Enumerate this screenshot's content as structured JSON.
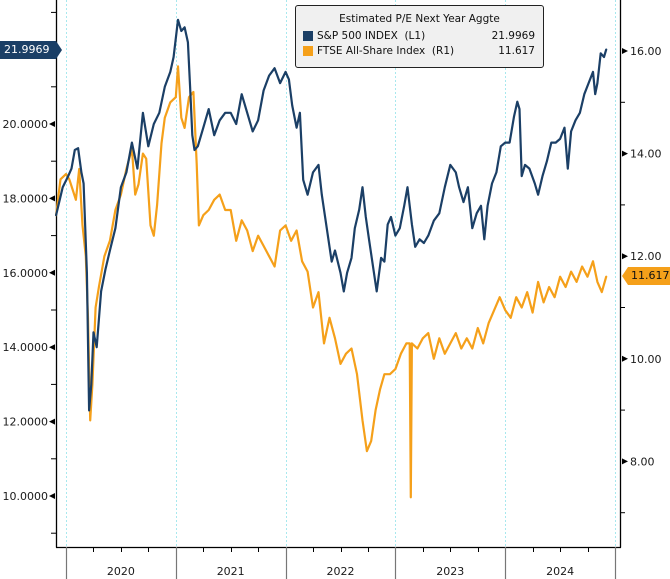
{
  "chart_data": {
    "type": "line",
    "title": "Estimated P/E Next Year Aggte",
    "xlabel": "",
    "x_ticks": [
      "2020",
      "2021",
      "2022",
      "2023",
      "2024"
    ],
    "x_range": [
      2019.91,
      2024.96
    ],
    "left_axis": {
      "ylim": [
        8.7,
        23.3
      ],
      "ticks": [
        "10.0000",
        "12.0000",
        "14.0000",
        "16.0000",
        "18.0000",
        "20.0000"
      ],
      "tick_values": [
        10,
        12,
        14,
        16,
        18,
        20
      ]
    },
    "right_axis": {
      "ylim": [
        6.9,
        16.95
      ],
      "ticks": [
        "8.00",
        "10.00",
        "12.00",
        "14.00",
        "16.00"
      ],
      "tick_values": [
        8,
        10,
        12,
        14,
        16
      ]
    },
    "grid": "vertical dotted at year boundaries",
    "legend_placement": "top-center",
    "series": [
      {
        "name": "S&P 500 INDEX",
        "axis_tag": "(L1)",
        "axis": "left",
        "color": "#1b3f66",
        "last_value": "21.9969",
        "x": [
          2019.91,
          2019.97,
          2020.02,
          2020.05,
          2020.08,
          2020.11,
          2020.14,
          2020.16,
          2020.19,
          2020.21,
          2020.23,
          2020.25,
          2020.28,
          2020.32,
          2020.36,
          2020.4,
          2020.45,
          2020.5,
          2020.55,
          2020.6,
          2020.65,
          2020.7,
          2020.75,
          2020.8,
          2020.85,
          2020.9,
          2020.95,
          2020.98,
          2021.02,
          2021.05,
          2021.08,
          2021.11,
          2021.13,
          2021.15,
          2021.17,
          2021.2,
          2021.25,
          2021.3,
          2021.35,
          2021.4,
          2021.45,
          2021.5,
          2021.55,
          2021.6,
          2021.65,
          2021.7,
          2021.75,
          2021.8,
          2021.85,
          2021.9,
          2021.95,
          2022.0,
          2022.03,
          2022.06,
          2022.1,
          2022.13,
          2022.16,
          2022.2,
          2022.25,
          2022.3,
          2022.33,
          2022.38,
          2022.42,
          2022.45,
          2022.5,
          2022.53,
          2022.56,
          2022.6,
          2022.63,
          2022.67,
          2022.7,
          2022.73,
          2022.76,
          2022.8,
          2022.83,
          2022.87,
          2022.9,
          2022.93,
          2022.96,
          2023.0,
          2023.04,
          2023.08,
          2023.11,
          2023.15,
          2023.18,
          2023.22,
          2023.26,
          2023.3,
          2023.35,
          2023.4,
          2023.45,
          2023.5,
          2023.55,
          2023.58,
          2023.62,
          2023.66,
          2023.7,
          2023.74,
          2023.78,
          2023.81,
          2023.84,
          2023.88,
          2023.92,
          2023.96,
          2024.0,
          2024.04,
          2024.08,
          2024.11,
          2024.13,
          2024.15,
          2024.18,
          2024.22,
          2024.27,
          2024.3,
          2024.34,
          2024.38,
          2024.42,
          2024.46,
          2024.5,
          2024.54,
          2024.57,
          2024.6,
          2024.64,
          2024.68,
          2024.72,
          2024.76,
          2024.8,
          2024.82,
          2024.84,
          2024.87,
          2024.9,
          2024.92
        ],
        "values": [
          17.55,
          18.3,
          18.6,
          18.8,
          19.3,
          19.35,
          18.7,
          18.4,
          16.0,
          12.3,
          13.0,
          14.4,
          14.0,
          15.5,
          16.1,
          16.6,
          17.2,
          18.3,
          18.7,
          19.5,
          18.8,
          20.3,
          19.4,
          20.0,
          20.3,
          21.0,
          21.4,
          21.8,
          22.8,
          22.5,
          22.6,
          22.2,
          21.0,
          19.7,
          19.3,
          19.4,
          19.9,
          20.4,
          19.7,
          20.1,
          20.3,
          20.3,
          20.0,
          20.8,
          20.3,
          19.8,
          20.1,
          20.9,
          21.3,
          21.5,
          21.1,
          21.4,
          21.2,
          20.5,
          19.9,
          20.3,
          18.5,
          18.1,
          18.7,
          18.9,
          18.1,
          17.1,
          16.3,
          16.6,
          16.0,
          15.5,
          16.0,
          16.4,
          17.2,
          17.7,
          18.3,
          17.5,
          16.9,
          16.1,
          15.5,
          16.4,
          16.3,
          17.3,
          17.5,
          17.0,
          17.2,
          17.8,
          18.3,
          17.3,
          16.7,
          16.9,
          16.8,
          17.0,
          17.4,
          17.6,
          18.3,
          18.9,
          18.7,
          18.3,
          17.9,
          18.3,
          17.2,
          17.6,
          17.8,
          16.9,
          17.8,
          18.4,
          18.7,
          19.4,
          19.5,
          19.5,
          20.2,
          20.6,
          20.4,
          18.6,
          18.9,
          18.8,
          18.4,
          18.1,
          18.6,
          19.0,
          19.5,
          19.5,
          19.6,
          19.9,
          18.8,
          19.8,
          20.1,
          20.3,
          20.8,
          21.1,
          21.4,
          20.8,
          21.1,
          21.9,
          21.8,
          22.0
        ]
      },
      {
        "name": "FTSE All-Share Index",
        "axis_tag": "(R1)",
        "axis": "right",
        "color": "#f5a01a",
        "last_value": "11.617",
        "x": [
          2019.91,
          2019.95,
          2020.0,
          2020.03,
          2020.06,
          2020.09,
          2020.12,
          2020.15,
          2020.18,
          2020.2,
          2020.22,
          2020.24,
          2020.27,
          2020.3,
          2020.35,
          2020.4,
          2020.45,
          2020.5,
          2020.55,
          2020.6,
          2020.63,
          2020.66,
          2020.7,
          2020.73,
          2020.77,
          2020.8,
          2020.83,
          2020.87,
          2020.9,
          2020.95,
          2021.0,
          2021.02,
          2021.05,
          2021.08,
          2021.12,
          2021.16,
          2021.19,
          2021.21,
          2021.25,
          2021.3,
          2021.35,
          2021.4,
          2021.45,
          2021.5,
          2021.55,
          2021.6,
          2021.65,
          2021.7,
          2021.75,
          2021.8,
          2021.85,
          2021.9,
          2021.95,
          2022.0,
          2022.05,
          2022.1,
          2022.15,
          2022.2,
          2022.25,
          2022.3,
          2022.35,
          2022.4,
          2022.45,
          2022.5,
          2022.55,
          2022.6,
          2022.65,
          2022.7,
          2022.74,
          2022.78,
          2022.82,
          2022.86,
          2022.9,
          2022.95,
          2023.0,
          2023.05,
          2023.1,
          2023.13,
          2023.14,
          2023.15,
          2023.2,
          2023.25,
          2023.3,
          2023.35,
          2023.4,
          2023.45,
          2023.5,
          2023.55,
          2023.6,
          2023.65,
          2023.7,
          2023.75,
          2023.8,
          2023.85,
          2023.9,
          2023.95,
          2024.0,
          2024.05,
          2024.1,
          2024.15,
          2024.2,
          2024.25,
          2024.3,
          2024.35,
          2024.4,
          2024.45,
          2024.5,
          2024.55,
          2024.6,
          2024.65,
          2024.7,
          2024.75,
          2024.8,
          2024.84,
          2024.88,
          2024.92
        ],
        "values": [
          12.8,
          13.5,
          13.6,
          13.5,
          13.3,
          13.1,
          13.7,
          12.6,
          12.0,
          10.8,
          8.8,
          9.5,
          11.0,
          11.4,
          12.0,
          12.3,
          12.9,
          13.2,
          13.7,
          14.1,
          13.2,
          13.4,
          14.0,
          13.9,
          12.6,
          12.4,
          13.0,
          14.2,
          14.7,
          15.0,
          15.1,
          15.7,
          14.7,
          14.5,
          15.1,
          15.2,
          13.8,
          12.6,
          12.8,
          12.9,
          13.1,
          13.2,
          12.9,
          12.9,
          12.3,
          12.7,
          12.5,
          12.1,
          12.4,
          12.2,
          12.0,
          11.8,
          12.5,
          12.6,
          12.3,
          12.5,
          11.9,
          11.7,
          11.0,
          11.3,
          10.3,
          10.8,
          10.4,
          9.9,
          10.1,
          10.2,
          9.7,
          8.8,
          8.2,
          8.4,
          9.0,
          9.4,
          9.7,
          9.7,
          9.8,
          10.1,
          10.3,
          10.3,
          7.3,
          10.3,
          10.2,
          10.4,
          10.5,
          10.0,
          10.4,
          10.1,
          10.3,
          10.5,
          10.2,
          10.4,
          10.2,
          10.6,
          10.3,
          10.7,
          10.95,
          11.2,
          10.95,
          10.8,
          11.2,
          11.0,
          11.3,
          10.9,
          11.5,
          11.1,
          11.4,
          11.2,
          11.6,
          11.4,
          11.7,
          11.5,
          11.8,
          11.6,
          11.9,
          11.5,
          11.3,
          11.6
        ]
      }
    ],
    "legend": {
      "title": "Estimated P/E Next Year Aggte",
      "entries": [
        {
          "label": "S&P 500 INDEX  (L1)",
          "value": "21.9969"
        },
        {
          "label": "FTSE All-Share Index  (R1)",
          "value": "11.617"
        }
      ]
    },
    "last_price_flags": {
      "left": "21.9969",
      "right": "11.617"
    }
  }
}
